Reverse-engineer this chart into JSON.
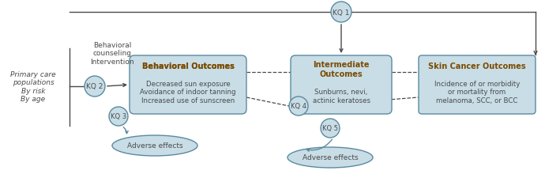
{
  "bg_color": "#ffffff",
  "box_fill": "#c8dde6",
  "box_edge": "#5a8a9f",
  "circle_fill": "#c8dde6",
  "circle_edge": "#5a8a9f",
  "ellipse_fill": "#c8dde6",
  "ellipse_edge": "#5a8a9f",
  "text_color": "#4a4a4a",
  "arrow_color": "#4a4a4a",
  "dashed_color": "#4a4a4a",
  "title_color": "#7b4c00",
  "population_text": "Primary care\npopulations\nBy risk\nBy age",
  "intervention_text": "Behavioral\ncounseling\nIntervention",
  "kq_labels": [
    "KQ 2",
    "KQ 3",
    "KQ 1",
    "KQ 4",
    "KQ 5"
  ],
  "box1_title": "Behavioral Outcomes",
  "box1_body": "Decreased sun exposure\nAvoidance of indoor tanning\nIncreased use of sunscreen",
  "box2_title": "Intermediate\nOutcomes",
  "box2_body": "Sunburns, nevi,\nactinic keratoses",
  "box3_title": "Skin Cancer Outcomes",
  "box3_body": "Incidence of or morbidity\nor mortality from\nmelanoma, SCC, or BCC",
  "adverse1_text": "Adverse effects",
  "adverse2_text": "Adverse effects"
}
